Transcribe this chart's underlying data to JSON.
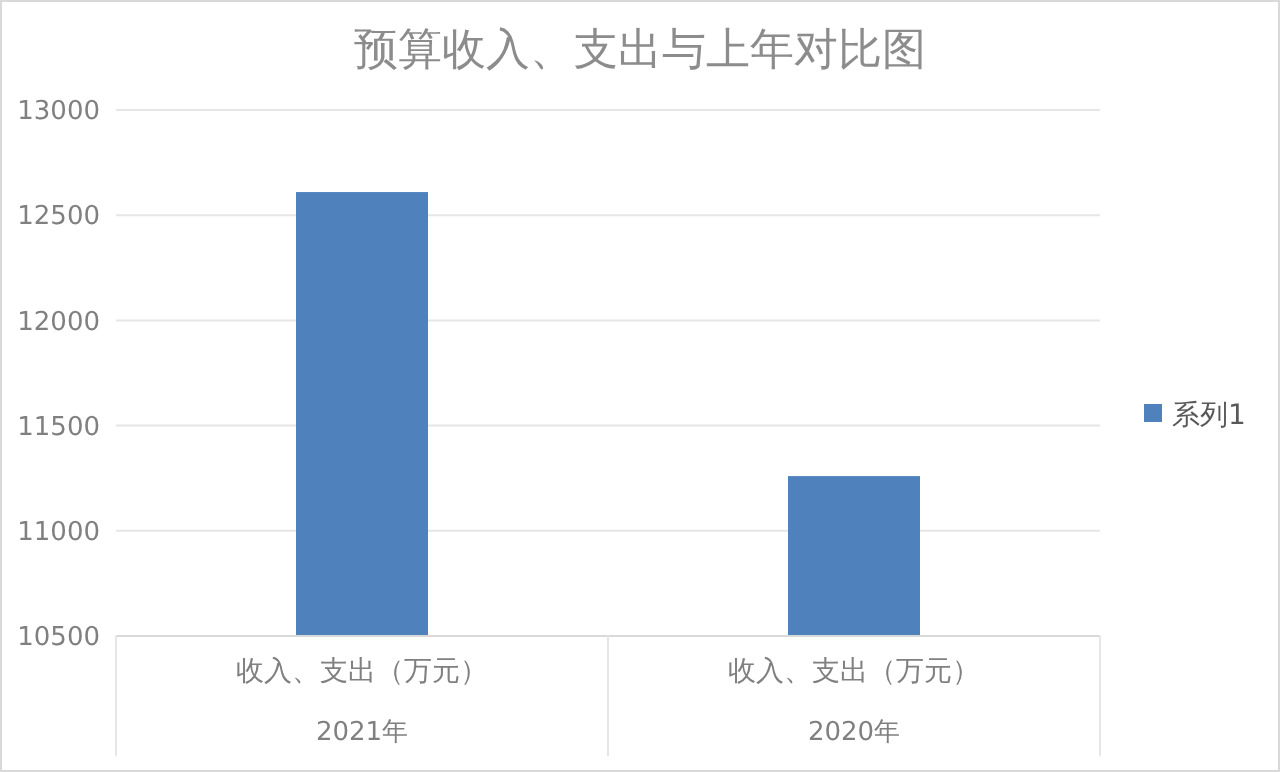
{
  "chart_data": {
    "type": "bar",
    "title": "预算收入、支出与上年对比图",
    "categories": [
      "收入、支出（万元）",
      "收入、支出（万元）"
    ],
    "series": [
      {
        "name": "系列1",
        "color": "#4f81bd",
        "values": [
          12610,
          11260
        ]
      }
    ],
    "ylim": [
      10500,
      13000
    ],
    "yticks": [
      10500,
      11000,
      11500,
      12000,
      12500,
      13000
    ],
    "grid": "y",
    "legend": "right",
    "annotations": [
      "2021年",
      "2020年"
    ]
  }
}
